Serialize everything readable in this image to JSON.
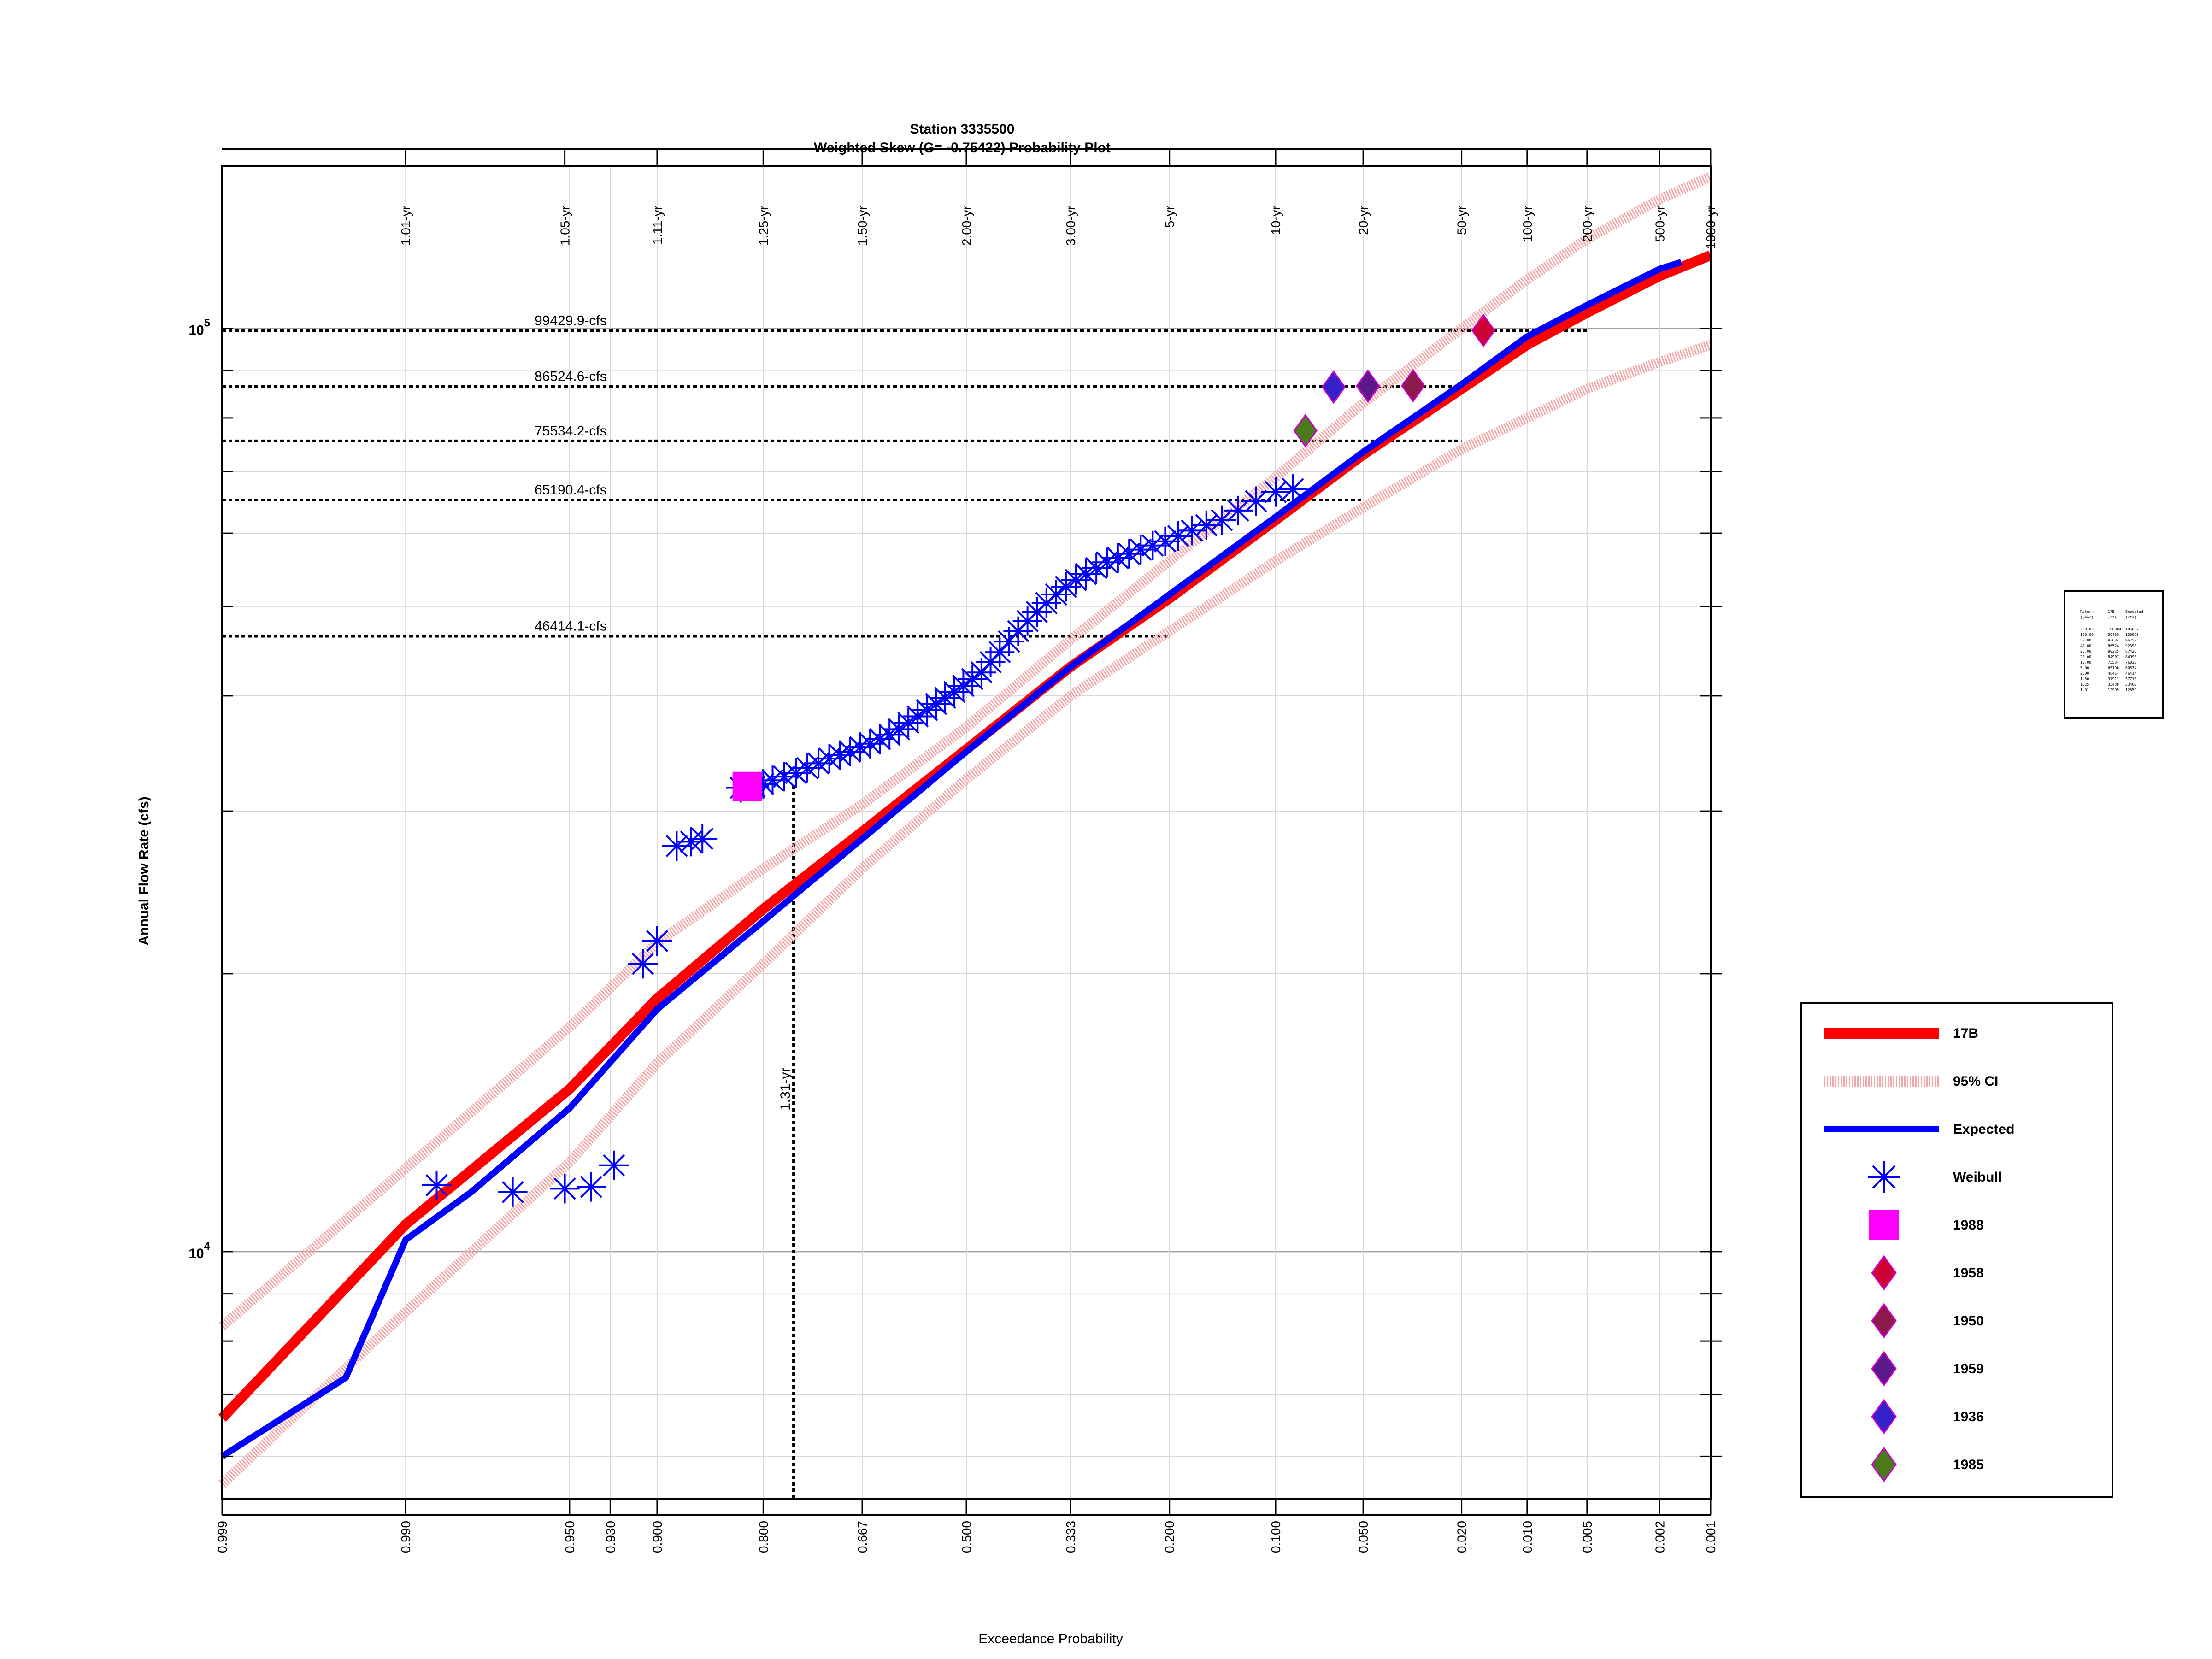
{
  "chart_data": {
    "type": "scatter",
    "title": "Station 3335500",
    "subtitle": "Weighted Skew (G= -0.75422) Probability Plot",
    "xlabel": "Exceedance Probability",
    "ylabel": "Annual Flow Rate (cfs)",
    "x_scale": "normal-probability (reversed)",
    "y_scale": "log",
    "xlim": [
      0.999,
      0.001
    ],
    "ylim": [
      5400,
      150000
    ],
    "x_ticks": [
      "0.999",
      "0.990",
      "0.950",
      "0.930",
      "0.900",
      "0.800",
      "0.667",
      "0.500",
      "0.333",
      "0.200",
      "0.100",
      "0.050",
      "0.020",
      "0.010",
      "0.005",
      "0.002",
      "0.001"
    ],
    "return_period_labels": [
      "1.01-yr",
      "1.05-yr",
      "1.11-yr",
      "1.25-yr",
      "1.50-yr",
      "2.00-yr",
      "3.00-yr",
      "5-yr",
      "10-yr",
      "20-yr",
      "50-yr",
      "100-yr",
      "200-yr",
      "500-yr",
      "1000-yr"
    ],
    "return_period_probs": [
      0.99,
      0.952,
      0.9,
      0.8,
      0.667,
      0.5,
      0.333,
      0.2,
      0.1,
      0.05,
      0.02,
      0.01,
      0.005,
      0.002,
      0.001
    ],
    "y_tick_labels": [
      {
        "value": 10000,
        "base": "10",
        "exp": "4"
      },
      {
        "value": 100000,
        "base": "10",
        "exp": "5"
      }
    ],
    "grid": true,
    "reference_lines": [
      {
        "label": "99429.9-cfs",
        "value": 99429.9
      },
      {
        "label": "86524.6-cfs",
        "value": 86524.6
      },
      {
        "label": "75534.2-cfs",
        "value": 75534.2
      },
      {
        "label": "65190.4-cfs",
        "value": 65190.4
      },
      {
        "label": "46414.1-cfs",
        "value": 46414.1
      }
    ],
    "vertical_reference": {
      "label": "1.31-yr",
      "p": 0.763,
      "y": 32000
    },
    "series": [
      {
        "name": "17B",
        "kind": "line",
        "color": "#ff0000",
        "points": [
          [
            0.999,
            6600
          ],
          [
            0.99,
            10700
          ],
          [
            0.95,
            15000
          ],
          [
            0.9,
            18800
          ],
          [
            0.8,
            23500
          ],
          [
            0.667,
            28500
          ],
          [
            0.5,
            35000
          ],
          [
            0.333,
            43000
          ],
          [
            0.2,
            51000
          ],
          [
            0.1,
            62000
          ],
          [
            0.05,
            73000
          ],
          [
            0.02,
            86000
          ],
          [
            0.01,
            96000
          ],
          [
            0.005,
            104000
          ],
          [
            0.002,
            114000
          ],
          [
            0.001,
            120000
          ]
        ]
      },
      {
        "name": "95% CI",
        "kind": "line",
        "color": "#f4a6a6",
        "points": [
          [
            0.999,
            8300
          ],
          [
            0.99,
            12300
          ],
          [
            0.95,
            17500
          ],
          [
            0.9,
            21600
          ],
          [
            0.8,
            26000
          ],
          [
            0.667,
            30500
          ],
          [
            0.5,
            37000
          ],
          [
            0.333,
            46000
          ],
          [
            0.2,
            56000
          ],
          [
            0.1,
            69000
          ],
          [
            0.05,
            83000
          ],
          [
            0.02,
            100000
          ],
          [
            0.01,
            113000
          ],
          [
            0.005,
            125000
          ],
          [
            0.002,
            138000
          ],
          [
            0.001,
            146000
          ]
        ]
      },
      {
        "name": "",
        "kind": "line",
        "color": "#f4a6a6",
        "points": [
          [
            0.999,
            5600
          ],
          [
            0.99,
            8600
          ],
          [
            0.95,
            12500
          ],
          [
            0.9,
            16000
          ],
          [
            0.8,
            20500
          ],
          [
            0.667,
            26000
          ],
          [
            0.5,
            32500
          ],
          [
            0.333,
            40000
          ],
          [
            0.2,
            47000
          ],
          [
            0.1,
            56000
          ],
          [
            0.05,
            64000
          ],
          [
            0.02,
            74000
          ],
          [
            0.01,
            80000
          ],
          [
            0.005,
            86000
          ],
          [
            0.002,
            92000
          ],
          [
            0.001,
            96000
          ]
        ]
      },
      {
        "name": "Expected",
        "kind": "line",
        "color": "#0000ff",
        "points": [
          [
            0.999,
            6000
          ],
          [
            0.995,
            7300
          ],
          [
            0.99,
            10300
          ],
          [
            0.98,
            11600
          ],
          [
            0.95,
            14300
          ],
          [
            0.9,
            18300
          ],
          [
            0.8,
            22800
          ],
          [
            0.667,
            28000
          ],
          [
            0.5,
            34800
          ],
          [
            0.333,
            43000
          ],
          [
            0.2,
            51500
          ],
          [
            0.1,
            62500
          ],
          [
            0.05,
            73500
          ],
          [
            0.02,
            87000
          ],
          [
            0.01,
            98000
          ],
          [
            0.005,
            106000
          ],
          [
            0.002,
            116000
          ],
          [
            0.0015,
            118000
          ]
        ]
      },
      {
        "name": "Weibull",
        "kind": "scatter",
        "color": "#0000ff",
        "marker": "asterisk",
        "points": [
          [
            0.986,
            11800
          ],
          [
            0.97,
            11600
          ],
          [
            0.952,
            11700
          ],
          [
            0.94,
            11750
          ],
          [
            0.928,
            12400
          ],
          [
            0.91,
            20500
          ],
          [
            0.9,
            21700
          ],
          [
            0.885,
            27500
          ],
          [
            0.873,
            27800
          ],
          [
            0.863,
            28000
          ],
          [
            0.825,
            31800
          ],
          [
            0.81,
            31900
          ],
          [
            0.8,
            32100
          ],
          [
            0.789,
            32400
          ],
          [
            0.775,
            32700
          ],
          [
            0.76,
            33000
          ],
          [
            0.745,
            33400
          ],
          [
            0.73,
            33800
          ],
          [
            0.715,
            34200
          ],
          [
            0.7,
            34500
          ],
          [
            0.685,
            34800
          ],
          [
            0.67,
            35200
          ],
          [
            0.655,
            35500
          ],
          [
            0.64,
            35900
          ],
          [
            0.625,
            36300
          ],
          [
            0.61,
            36800
          ],
          [
            0.595,
            37400
          ],
          [
            0.58,
            38000
          ],
          [
            0.565,
            38600
          ],
          [
            0.55,
            39200
          ],
          [
            0.535,
            39800
          ],
          [
            0.52,
            40400
          ],
          [
            0.505,
            41000
          ],
          [
            0.49,
            41700
          ],
          [
            0.475,
            42400
          ],
          [
            0.46,
            43500
          ],
          [
            0.445,
            44600
          ],
          [
            0.43,
            45800
          ],
          [
            0.415,
            47000
          ],
          [
            0.4,
            48200
          ],
          [
            0.385,
            49300
          ],
          [
            0.37,
            50400
          ],
          [
            0.355,
            51500
          ],
          [
            0.34,
            52500
          ],
          [
            0.325,
            53400
          ],
          [
            0.31,
            54200
          ],
          [
            0.295,
            55000
          ],
          [
            0.28,
            55800
          ],
          [
            0.265,
            56400
          ],
          [
            0.25,
            57000
          ],
          [
            0.235,
            57600
          ],
          [
            0.22,
            58200
          ],
          [
            0.205,
            58800
          ],
          [
            0.19,
            59600
          ],
          [
            0.175,
            60400
          ],
          [
            0.16,
            61200
          ],
          [
            0.145,
            62000
          ],
          [
            0.13,
            63500
          ],
          [
            0.115,
            65000
          ],
          [
            0.1,
            66500
          ],
          [
            0.088,
            67000
          ]
        ]
      },
      {
        "name": "1988",
        "kind": "scatter",
        "color": "#ff00ff",
        "marker": "square",
        "points": [
          [
            0.818,
            31900
          ]
        ]
      },
      {
        "name": "1958",
        "kind": "scatter",
        "color": "#cc0033",
        "marker": "diamond",
        "points": [
          [
            0.016,
            99500
          ]
        ]
      },
      {
        "name": "1950",
        "kind": "scatter",
        "color": "#8b1a4a",
        "marker": "diamond",
        "points": [
          [
            0.032,
            86700
          ]
        ]
      },
      {
        "name": "1959",
        "kind": "scatter",
        "color": "#5a1a8a",
        "marker": "diamond",
        "points": [
          [
            0.048,
            86600
          ]
        ]
      },
      {
        "name": "1936",
        "kind": "scatter",
        "color": "#3322cc",
        "marker": "diamond",
        "points": [
          [
            0.064,
            86400
          ]
        ]
      },
      {
        "name": "1985",
        "kind": "scatter",
        "color": "#4a7a1a",
        "marker": "diamond",
        "points": [
          [
            0.08,
            77500
          ]
        ]
      }
    ],
    "legend_position": "right",
    "legend": [
      {
        "label": "17B",
        "symbol": "line",
        "color": "#ff0000"
      },
      {
        "label": "95% CI",
        "symbol": "ci",
        "color": "#f4a6a6"
      },
      {
        "label": "Expected",
        "symbol": "line",
        "color": "#0000ff"
      },
      {
        "label": "Weibull",
        "symbol": "asterisk",
        "color": "#0000ff"
      },
      {
        "label": "1988",
        "symbol": "square",
        "color": "#ff00ff"
      },
      {
        "label": "1958",
        "symbol": "diamond",
        "color": "#cc0033"
      },
      {
        "label": "1950",
        "symbol": "diamond",
        "color": "#8b1a4a"
      },
      {
        "label": "1959",
        "symbol": "diamond",
        "color": "#5a1a8a"
      },
      {
        "label": "1936",
        "symbol": "diamond",
        "color": "#3322cc"
      },
      {
        "label": "1985",
        "symbol": "diamond",
        "color": "#4a7a1a"
      }
    ],
    "return_table": {
      "headers": [
        [
          "Return",
          "17B",
          "Expected"
        ],
        [
          "(year)",
          "(cfs)",
          "(cfs)"
        ]
      ],
      "rows": [
        [
          "200.00",
          "106804",
          "106837"
        ],
        [
          "100.00",
          "99430",
          "100925"
        ],
        [
          "50.00",
          "93634",
          "96757"
        ],
        [
          "40.00",
          "86524",
          "92390"
        ],
        [
          "25.00",
          "80225",
          "87426"
        ],
        [
          "20.00",
          "84907",
          "84993"
        ],
        [
          "10.00",
          "75534",
          "76033"
        ],
        [
          "5.00",
          "65190",
          "60574"
        ],
        [
          "2.00",
          "46414",
          "46414"
        ],
        [
          "1.50",
          "37911",
          "37713"
        ],
        [
          "1.25",
          "35438",
          "33460"
        ],
        [
          "1.01",
          "12995",
          "12659"
        ]
      ]
    }
  }
}
